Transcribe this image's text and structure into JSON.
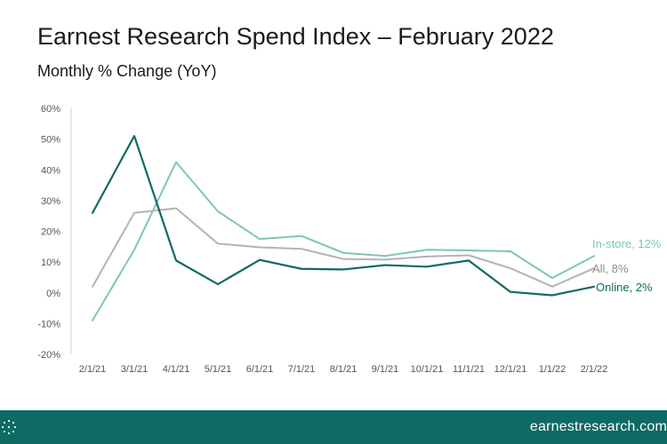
{
  "header": {
    "title": "Earnest Research Spend Index – February 2022",
    "subtitle": "Monthly % Change (YoY)"
  },
  "footer": {
    "url": "earnestresearch.com",
    "background_color": "#0f6a63",
    "logo_icon": "dotted-circle-icon"
  },
  "chart_data": {
    "type": "line",
    "title": "Earnest Research Spend Index – February 2022",
    "subtitle": "Monthly % Change (YoY)",
    "xlabel": "",
    "ylabel": "",
    "ylim": [
      -20,
      60
    ],
    "y_ticks": [
      60,
      50,
      40,
      30,
      20,
      10,
      0,
      -10,
      -20
    ],
    "y_tick_labels": [
      "60%",
      "50%",
      "40%",
      "30%",
      "20%",
      "10%",
      "0%",
      "-10%",
      "-20%"
    ],
    "grid": false,
    "categories": [
      "2/1/21",
      "3/1/21",
      "4/1/21",
      "5/1/21",
      "6/1/21",
      "7/1/21",
      "8/1/21",
      "9/1/21",
      "10/1/21",
      "11/1/21",
      "12/1/21",
      "1/1/22",
      "2/1/22"
    ],
    "series": [
      {
        "key": "instore",
        "label": "In-store, 12%",
        "color": "#7fc4bb",
        "values": [
          -9,
          14,
          42.5,
          26.5,
          17.5,
          18.5,
          13,
          12,
          14,
          13.8,
          13.5,
          4.8,
          12
        ]
      },
      {
        "key": "all",
        "label": "All, 8%",
        "color": "#b3b3b3",
        "values": [
          2,
          26,
          27.5,
          16,
          14.8,
          14.3,
          11,
          10.8,
          11.8,
          12.2,
          8,
          2,
          8
        ]
      },
      {
        "key": "online",
        "label": "Online, 2%",
        "color": "#0f6a63",
        "values": [
          26,
          51,
          10.5,
          2.8,
          10.7,
          7.8,
          7.6,
          9,
          8.5,
          10.5,
          0.3,
          -0.8,
          2
        ]
      }
    ]
  }
}
